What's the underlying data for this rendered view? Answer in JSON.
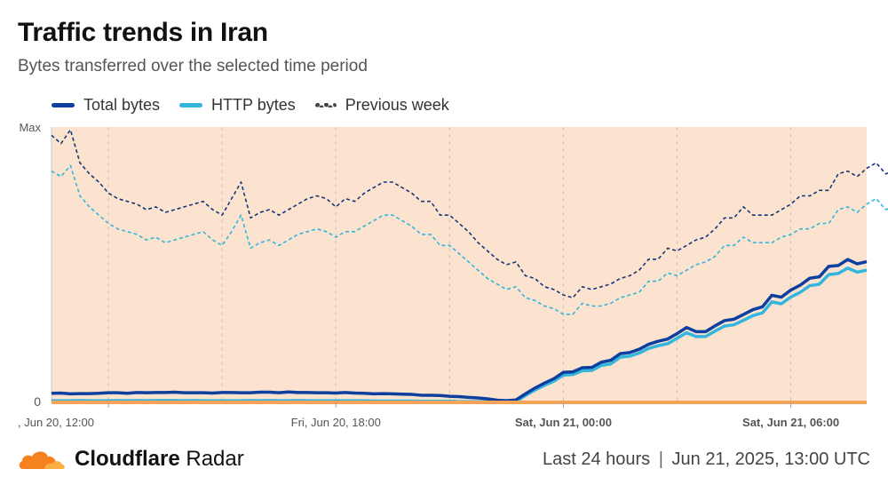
{
  "header": {
    "title": "Traffic trends in Iran",
    "subtitle": "Bytes transferred over the selected time period"
  },
  "legend": {
    "total": "Total bytes",
    "http": "HTTP bytes",
    "prev": "Previous week"
  },
  "footer": {
    "brand_bold": "Cloudflare",
    "brand_rest": " Radar",
    "period": "Last 24 hours",
    "separator": "|",
    "timestamp": "Jun 21, 2025, 13:00 UTC"
  },
  "colors": {
    "total": "#0d3f9e",
    "http": "#33b5de",
    "prev_total": "#17357a",
    "prev_http": "#33b5de",
    "background": "#fbe3cf",
    "highlight": "#f6a35a"
  },
  "chart_data": {
    "type": "line",
    "x_start": "Jun 20, 09:30",
    "x_step_minutes": 15,
    "y_tick_labels": [
      "Max",
      "0"
    ],
    "ylim": [
      0,
      100
    ],
    "x_ticks": [
      {
        "label": ", Jun 20, 12:00",
        "bold": false
      },
      {
        "label": "Fri, Jun 20, 18:00",
        "bold": false
      },
      {
        "label": "Sat, Jun 21, 00:00",
        "bold": true
      },
      {
        "label": "Sat, Jun 21, 06:00",
        "bold": true
      }
    ],
    "series": [
      {
        "name": "Total bytes",
        "key": "total",
        "values": [
          3.3,
          3.4,
          3.1,
          3.2,
          3.2,
          3.3,
          3.5,
          3.5,
          3.3,
          3.6,
          3.5,
          3.6,
          3.6,
          3.7,
          3.5,
          3.5,
          3.5,
          3.4,
          3.6,
          3.6,
          3.5,
          3.5,
          3.7,
          3.7,
          3.5,
          3.8,
          3.6,
          3.6,
          3.5,
          3.5,
          3.4,
          3.6,
          3.4,
          3.3,
          3.1,
          3.2,
          3.1,
          3.0,
          2.9,
          2.6,
          2.6,
          2.5,
          2.2,
          2.1,
          1.8,
          1.6,
          1.3,
          0.8,
          0.6,
          0.9,
          3.1,
          5.2,
          7.0,
          8.6,
          10.9,
          11.1,
          12.6,
          12.7,
          14.6,
          15.3,
          17.7,
          18.1,
          19.3,
          21.1,
          22.2,
          23.0,
          25.0,
          27.2,
          25.7,
          25.7,
          27.8,
          29.7,
          30.2,
          31.9,
          33.7,
          34.7,
          38.9,
          38.2,
          40.8,
          42.6,
          45.1,
          45.6,
          49.4,
          49.7,
          51.9,
          50.3,
          51.1
        ]
      },
      {
        "name": "HTTP bytes",
        "key": "http",
        "values": [
          0.6,
          0.6,
          0.6,
          0.7,
          0.6,
          0.6,
          0.6,
          0.7,
          0.6,
          0.7,
          0.6,
          0.7,
          0.7,
          0.7,
          0.6,
          0.7,
          0.6,
          0.6,
          0.6,
          0.6,
          0.6,
          0.7,
          0.6,
          0.7,
          0.6,
          0.6,
          0.7,
          0.6,
          0.6,
          0.6,
          0.6,
          0.6,
          0.6,
          0.6,
          0.5,
          0.5,
          0.5,
          0.5,
          0.5,
          0.4,
          0.4,
          0.4,
          0.4,
          0.3,
          0.3,
          0.3,
          0.2,
          0.2,
          0.2,
          0.3,
          2.5,
          4.5,
          6.2,
          7.7,
          9.9,
          10.1,
          11.5,
          11.6,
          13.4,
          14.0,
          16.4,
          16.8,
          17.9,
          19.6,
          20.6,
          21.3,
          23.3,
          25.3,
          23.9,
          23.9,
          25.9,
          27.7,
          28.2,
          29.8,
          31.5,
          32.5,
          36.5,
          35.8,
          38.3,
          40.0,
          42.4,
          42.9,
          46.4,
          46.8,
          48.8,
          47.3,
          48.0
        ]
      },
      {
        "name": "Previous week",
        "key": "prev_total",
        "style": "dashed",
        "values": [
          97,
          94,
          99,
          87,
          83,
          80,
          76,
          74,
          73,
          72,
          70,
          71,
          69,
          70,
          71,
          72,
          73,
          70,
          68,
          74,
          80,
          67,
          69,
          70,
          68,
          70,
          72,
          74,
          75,
          74,
          71,
          74,
          73,
          76,
          78,
          80,
          80,
          78,
          76,
          73,
          73,
          68,
          68,
          65,
          62,
          58,
          55,
          52,
          50,
          51,
          46,
          45,
          42,
          41,
          39,
          38,
          42,
          41,
          42,
          43,
          45,
          46,
          48,
          52,
          52,
          56,
          55,
          57,
          59,
          60,
          63,
          67,
          67,
          71,
          68,
          68,
          68,
          70,
          72,
          75,
          75,
          77,
          77,
          83,
          84,
          82,
          85,
          87,
          83,
          84,
          87
        ]
      },
      {
        "name": "Previous week (HTTP)",
        "key": "prev_http",
        "style": "dashed",
        "values": [
          84,
          82,
          86,
          75,
          71,
          68,
          65,
          63,
          62,
          61,
          59,
          60,
          58,
          59,
          60,
          61,
          62,
          59,
          57,
          62,
          68,
          56,
          58,
          59,
          57,
          59,
          61,
          62,
          63,
          62,
          60,
          62,
          62,
          64,
          66,
          68,
          68,
          66,
          64,
          61,
          61,
          57,
          57,
          54,
          51,
          48,
          45,
          43,
          41,
          42,
          38,
          37,
          35,
          34,
          32,
          32,
          36,
          35,
          35,
          36,
          38,
          39,
          40,
          44,
          44,
          47,
          46,
          48,
          50,
          51,
          53,
          57,
          57,
          60,
          58,
          58,
          58,
          60,
          61,
          63,
          63,
          65,
          65,
          70,
          71,
          69,
          72,
          74,
          70,
          71,
          74
        ]
      }
    ]
  }
}
